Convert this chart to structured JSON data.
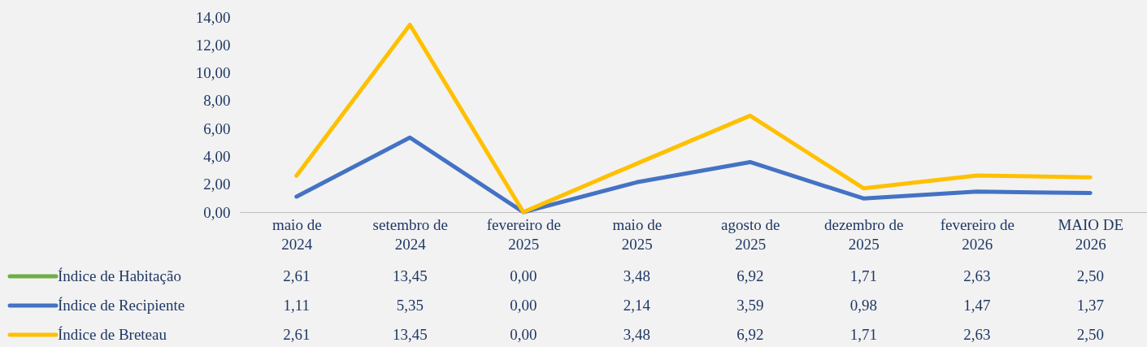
{
  "chart_data": {
    "type": "line",
    "categories": [
      "maio de 2024",
      "setembro de 2024",
      "fevereiro de 2025",
      "maio de 2025",
      "agosto de 2025",
      "dezembro de 2025",
      "fevereiro de 2026",
      "MAIO DE 2026"
    ],
    "series": [
      {
        "name": "Índice de Habitação",
        "color": "#70ad47",
        "values": [
          null,
          null,
          null,
          null,
          null,
          null,
          null,
          null
        ],
        "value_labels": [
          "2,61",
          "13,45",
          "0,00",
          "3,48",
          "6,92",
          "1,71",
          "2,63",
          "2,50"
        ]
      },
      {
        "name": "Índice de Recipiente",
        "color": "#4472c4",
        "values": [
          1.11,
          5.35,
          0.0,
          2.14,
          3.59,
          0.98,
          1.47,
          1.37
        ],
        "value_labels": [
          "1,11",
          "5,35",
          "0,00",
          "2,14",
          "3,59",
          "0,98",
          "1,47",
          "1,37"
        ]
      },
      {
        "name": "Índice de Breteau",
        "color": "#ffc000",
        "values": [
          2.61,
          13.45,
          0.0,
          3.48,
          6.92,
          1.71,
          2.63,
          2.5
        ],
        "value_labels": [
          "2,61",
          "13,45",
          "0,00",
          "3,48",
          "6,92",
          "1,71",
          "2,63",
          "2,50"
        ]
      }
    ],
    "ylim": [
      0,
      14
    ],
    "yticks": [
      {
        "value": 0,
        "label": "0,00"
      },
      {
        "value": 2,
        "label": "2,00"
      },
      {
        "value": 4,
        "label": "4,00"
      },
      {
        "value": 6,
        "label": "6,00"
      },
      {
        "value": 8,
        "label": "8,00"
      },
      {
        "value": 10,
        "label": "10,00"
      },
      {
        "value": 12,
        "label": "12,00"
      },
      {
        "value": 14,
        "label": "14,00"
      }
    ],
    "grid": false,
    "legend": "bottom left",
    "marker": "none",
    "line_style": "solid"
  }
}
